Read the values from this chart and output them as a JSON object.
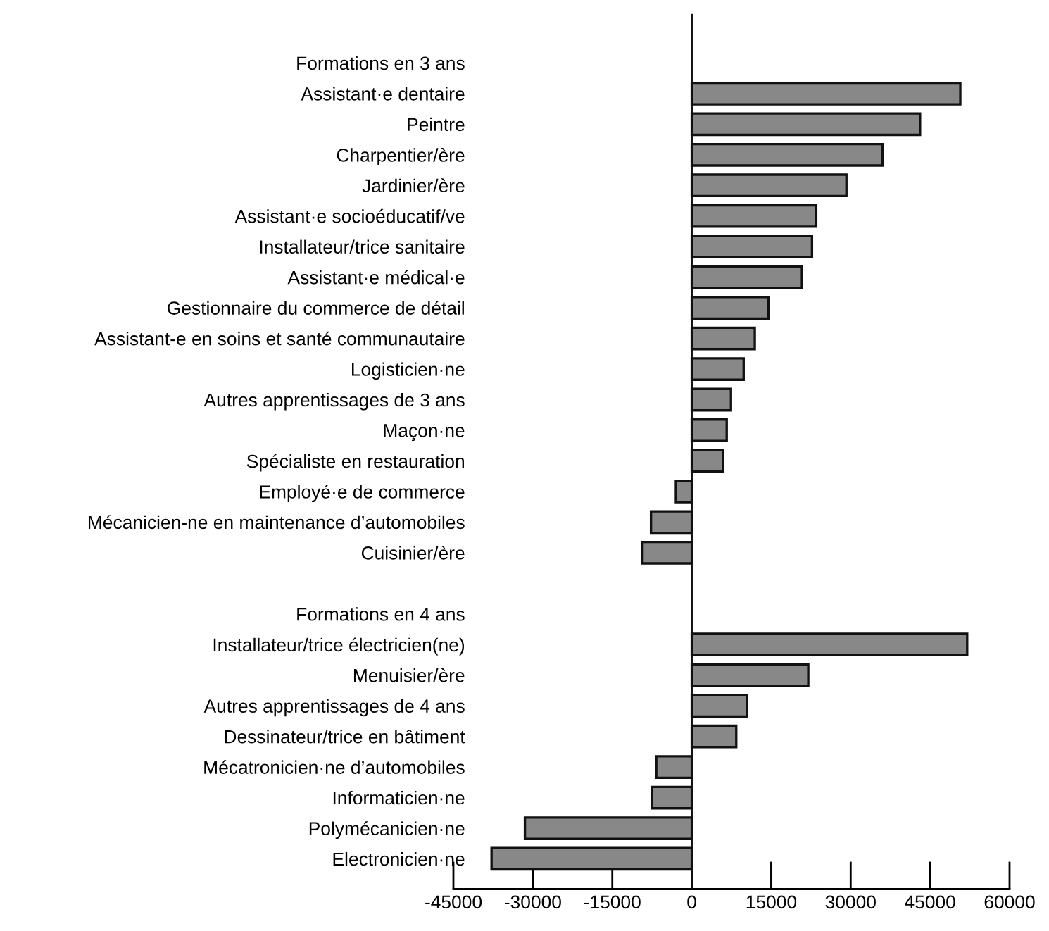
{
  "chart_data": {
    "type": "bar",
    "orientation": "horizontal",
    "categories": [
      "Formations en 3 ans",
      "Assistant·e dentaire",
      "Peintre",
      "Charpentier/ère",
      "Jardinier/ère",
      "Assistant·e socioéducatif/ve",
      "Installateur/trice sanitaire",
      "Assistant·e médical·e",
      "Gestionnaire du commerce de détail",
      "Assistant-e en soins et santé communautaire",
      "Logisticien·ne",
      "Autres apprentissages de 3 ans",
      "Maçon·ne",
      "Spécialiste en restauration",
      "Employé·e de commerce",
      "Mécanicien-ne en maintenance d’automobiles",
      "Cuisinier/ère",
      null,
      "Formations en 4 ans",
      "Installateur/trice électricien(ne)",
      "Menuisier/ère",
      "Autres apprentissages de 4 ans",
      "Dessinateur/trice en bâtiment",
      "Mécatronicien·ne d’automobiles",
      "Informaticien·ne",
      "Polymécanicien·ne",
      "Electronicien·ne"
    ],
    "values": [
      null,
      50700,
      43100,
      36000,
      29200,
      23500,
      22700,
      20800,
      14500,
      11900,
      9800,
      7400,
      6600,
      5900,
      -3000,
      -7700,
      -9300,
      null,
      null,
      52000,
      22000,
      10400,
      8400,
      -6700,
      -7500,
      -31500,
      -37800
    ],
    "color": "#888888",
    "xlim": [
      -45000,
      60000
    ],
    "xticks": [
      {
        "value": -45000,
        "label": "-45000"
      },
      {
        "value": -30000,
        "label": "-30000"
      },
      {
        "value": -15000,
        "label": "-15000"
      },
      0,
      15000,
      30000,
      45000,
      60000
    ],
    "ref_lines": [
      {
        "axis": "x",
        "value": 0,
        "label": null
      }
    ],
    "grid": false,
    "legend": false
  }
}
